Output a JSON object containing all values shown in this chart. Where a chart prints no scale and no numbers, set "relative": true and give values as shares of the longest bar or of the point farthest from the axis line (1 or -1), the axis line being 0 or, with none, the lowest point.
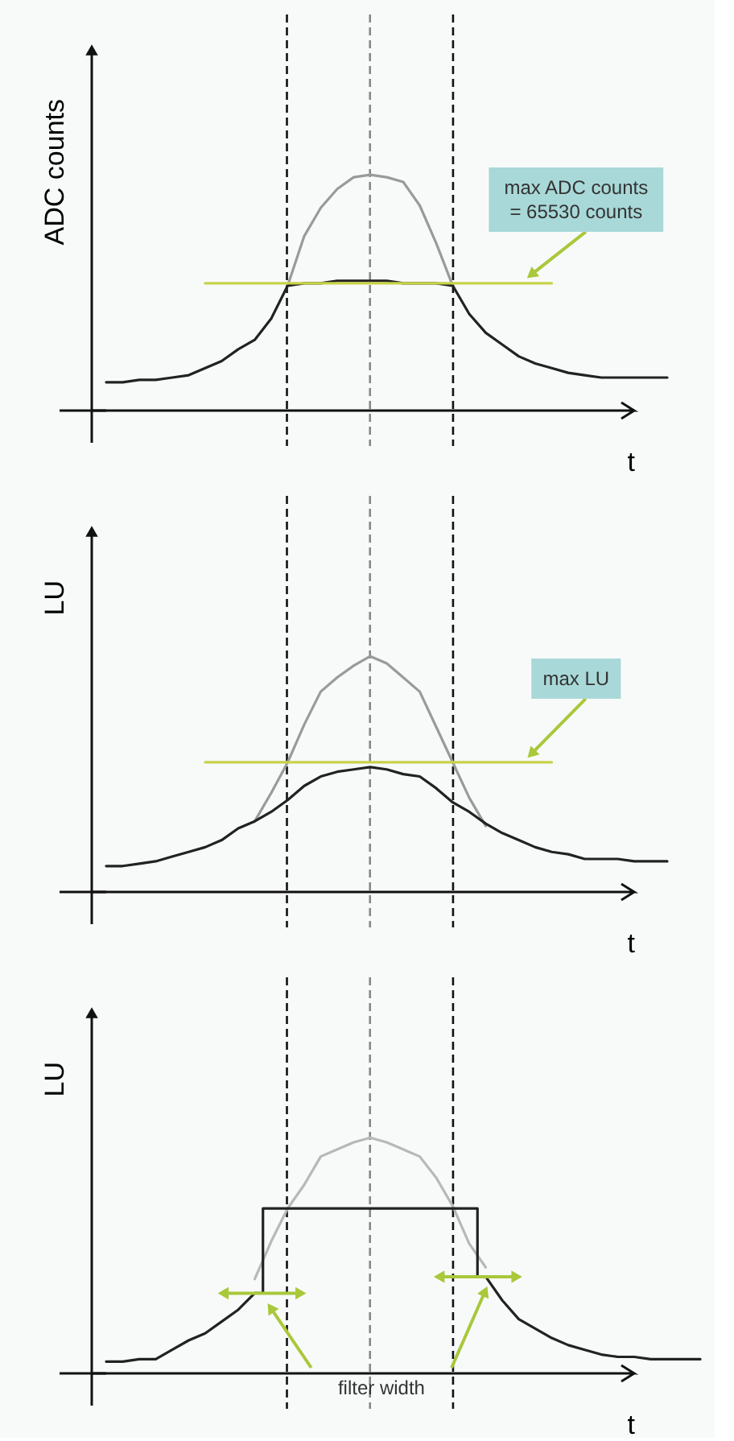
{
  "chart_data": [
    {
      "type": "line",
      "relative": true,
      "ylabel": "ADC counts",
      "xlabel": "t",
      "categories": [
        null,
        null,
        null,
        null,
        null,
        null,
        null,
        null,
        null,
        null,
        null,
        null,
        null,
        null,
        null,
        null,
        null,
        null,
        null,
        null,
        null,
        null,
        null,
        null,
        null,
        null,
        null,
        null,
        null,
        null,
        null,
        null,
        null,
        null,
        null,
        null,
        null
      ],
      "series": [
        {
          "color": "#9a9a9a",
          "values": [
            null,
            null,
            null,
            null,
            null,
            null,
            null,
            null,
            null,
            null,
            null,
            0.53,
            0.74,
            0.86,
            0.94,
            0.99,
            1.0,
            0.99,
            0.97,
            0.87,
            0.71,
            0.53,
            null,
            null,
            null,
            null,
            null,
            null,
            null,
            null,
            null,
            null,
            null,
            null,
            null,
            null,
            null
          ]
        },
        {
          "color": "#222222",
          "values": [
            0.12,
            0.12,
            0.13,
            0.13,
            0.14,
            0.15,
            0.18,
            0.21,
            0.26,
            0.3,
            0.39,
            0.53,
            0.54,
            0.54,
            0.55,
            0.55,
            0.55,
            0.55,
            0.54,
            0.54,
            0.54,
            0.53,
            0.41,
            0.33,
            0.28,
            0.23,
            0.2,
            0.18,
            0.16,
            0.15,
            0.14,
            0.14,
            0.14,
            0.14,
            0.14,
            null,
            null
          ]
        },
        {
          "color": "#c8d24a",
          "values": [
            null,
            null,
            null,
            null,
            null,
            null,
            0.54,
            0.54,
            0.54,
            0.54,
            0.54,
            0.54,
            0.54,
            0.54,
            0.54,
            0.54,
            0.54,
            0.54,
            0.54,
            0.54,
            0.54,
            0.54,
            0.54,
            0.54,
            0.54,
            0.54,
            0.54,
            0.54,
            null,
            null,
            null,
            null,
            null,
            null,
            null,
            null,
            null
          ]
        }
      ],
      "annotations": [
        "max ADC counts\n= 65530 counts"
      ]
    },
    {
      "type": "line",
      "relative": true,
      "ylabel": "LU",
      "xlabel": "t",
      "categories": [
        null,
        null,
        null,
        null,
        null,
        null,
        null,
        null,
        null,
        null,
        null,
        null,
        null,
        null,
        null,
        null,
        null,
        null,
        null,
        null,
        null,
        null,
        null,
        null,
        null,
        null,
        null,
        null,
        null,
        null,
        null,
        null,
        null,
        null,
        null,
        null,
        null
      ],
      "series": [
        {
          "color": "#9a9a9a",
          "values": [
            null,
            null,
            null,
            null,
            null,
            null,
            null,
            null,
            null,
            0.3,
            0.42,
            0.55,
            0.71,
            0.85,
            0.91,
            0.96,
            1.0,
            0.97,
            0.91,
            0.85,
            0.7,
            0.55,
            0.4,
            0.28,
            null,
            null,
            null,
            null,
            null,
            null,
            null,
            null,
            null,
            null,
            null,
            null,
            null
          ]
        },
        {
          "color": "#222222",
          "values": [
            0.11,
            0.11,
            0.12,
            0.13,
            0.15,
            0.17,
            0.19,
            0.22,
            0.27,
            0.3,
            0.34,
            0.39,
            0.45,
            0.49,
            0.51,
            0.52,
            0.53,
            0.52,
            0.5,
            0.49,
            0.44,
            0.38,
            0.34,
            0.29,
            0.25,
            0.22,
            0.19,
            0.17,
            0.16,
            0.14,
            0.14,
            0.14,
            0.13,
            0.13,
            0.13,
            null,
            null
          ]
        },
        {
          "color": "#c8d24a",
          "values": [
            null,
            null,
            null,
            null,
            null,
            null,
            0.55,
            0.55,
            0.55,
            0.55,
            0.55,
            0.55,
            0.55,
            0.55,
            0.55,
            0.55,
            0.55,
            0.55,
            0.55,
            0.55,
            0.55,
            0.55,
            0.55,
            0.55,
            0.55,
            0.55,
            0.55,
            0.55,
            null,
            null,
            null,
            null,
            null,
            null,
            null,
            null,
            null
          ]
        }
      ],
      "annotations": [
        "max LU"
      ]
    },
    {
      "type": "line",
      "relative": true,
      "ylabel": "LU",
      "xlabel": "t",
      "categories": [
        null,
        null,
        null,
        null,
        null,
        null,
        null,
        null,
        null,
        null,
        null,
        null,
        null,
        null,
        null,
        null,
        null,
        null,
        null,
        null,
        null,
        null,
        null,
        null,
        null,
        null,
        null,
        null,
        null,
        null,
        null,
        null,
        null,
        null,
        null,
        null,
        null
      ],
      "series": [
        {
          "color": "#b8b8b8",
          "values": [
            null,
            null,
            null,
            null,
            null,
            null,
            null,
            null,
            null,
            0.4,
            0.56,
            0.7,
            0.8,
            0.92,
            0.95,
            0.98,
            1.0,
            0.98,
            0.95,
            0.92,
            0.83,
            0.71,
            0.55,
            0.45,
            null,
            null,
            null,
            null,
            null,
            null,
            null,
            null,
            null,
            null,
            null,
            null,
            null
          ]
        },
        {
          "color": "#222222",
          "values": [
            0.05,
            0.05,
            0.06,
            0.06,
            0.1,
            0.14,
            0.17,
            0.22,
            0.27,
            0.34,
            null,
            null,
            null,
            null,
            null,
            null,
            null,
            null,
            null,
            null,
            null,
            null,
            null,
            0.41,
            0.31,
            0.23,
            0.19,
            0.15,
            0.12,
            0.1,
            0.08,
            0.07,
            0.07,
            0.06,
            0.06,
            0.06,
            0.06
          ]
        },
        {
          "type": "step",
          "color": "#222222",
          "values": [
            null,
            null,
            null,
            null,
            null,
            null,
            null,
            null,
            null,
            0.34,
            0.7,
            0.7,
            0.7,
            0.7,
            0.7,
            0.7,
            0.7,
            0.7,
            0.7,
            0.7,
            0.7,
            0.7,
            0.7,
            0.41,
            null,
            null,
            null,
            null,
            null,
            null,
            null,
            null,
            null,
            null,
            null,
            null,
            null
          ]
        }
      ],
      "annotations": [
        "filter width"
      ]
    }
  ]
}
